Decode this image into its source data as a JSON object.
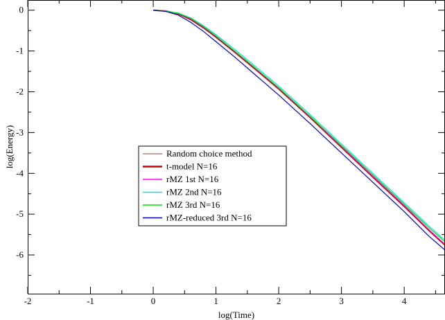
{
  "chart_data": {
    "type": "line",
    "title": "",
    "xlabel": "log(Time)",
    "ylabel": "log(Energy)",
    "xlim": [
      -2,
      4.65
    ],
    "ylim": [
      -6.95,
      0.25
    ],
    "xticks": [
      -2,
      -1,
      0,
      1,
      2,
      3,
      4
    ],
    "yticks": [
      0,
      -1,
      -2,
      -3,
      -4,
      -5,
      -6
    ],
    "grid": false,
    "legend_position": "center-left",
    "series": [
      {
        "name": "Random choice method",
        "color": "#c08080",
        "x": [
          0,
          0.2,
          0.4,
          0.6,
          0.8,
          1.0,
          1.3,
          1.6,
          2.0,
          2.5,
          3.0,
          3.5,
          4.0,
          4.4,
          4.65
        ],
        "y": [
          0.0,
          -0.02,
          -0.08,
          -0.22,
          -0.42,
          -0.65,
          -1.02,
          -1.4,
          -1.92,
          -2.62,
          -3.35,
          -4.08,
          -4.8,
          -5.4,
          -5.75
        ]
      },
      {
        "name": "t-model N=16",
        "color": "#cc0000",
        "x": [
          0,
          0.2,
          0.4,
          0.6,
          0.8,
          1.0,
          1.3,
          1.6,
          2.0,
          2.5,
          3.0,
          3.5,
          4.0,
          4.4,
          4.65
        ],
        "y": [
          0.0,
          -0.02,
          -0.09,
          -0.23,
          -0.43,
          -0.66,
          -1.03,
          -1.41,
          -1.93,
          -2.63,
          -3.36,
          -4.09,
          -4.81,
          -5.41,
          -5.76
        ]
      },
      {
        "name": "rMZ 1st N=16",
        "color": "#ff00ff",
        "x": [
          0,
          0.2,
          0.4,
          0.6,
          0.8,
          1.0,
          1.3,
          1.6,
          2.0,
          2.5,
          3.0,
          3.5,
          4.0,
          4.4,
          4.65
        ],
        "y": [
          0.0,
          -0.02,
          -0.08,
          -0.21,
          -0.41,
          -0.64,
          -1.01,
          -1.39,
          -1.91,
          -2.61,
          -3.34,
          -4.07,
          -4.79,
          -5.39,
          -5.74
        ]
      },
      {
        "name": "rMZ 2nd N=16",
        "color": "#00e5e5",
        "x": [
          0,
          0.2,
          0.4,
          0.6,
          0.8,
          1.0,
          1.3,
          1.6,
          2.0,
          2.5,
          3.0,
          3.5,
          4.0,
          4.4,
          4.65
        ],
        "y": [
          0.0,
          -0.02,
          -0.07,
          -0.19,
          -0.38,
          -0.6,
          -0.96,
          -1.34,
          -1.86,
          -2.56,
          -3.28,
          -4.0,
          -4.72,
          -5.3,
          -5.64
        ]
      },
      {
        "name": "rMZ 3rd N=16",
        "color": "#00e000",
        "x": [
          0,
          0.2,
          0.4,
          0.6,
          0.8,
          1.0,
          1.3,
          1.6,
          2.0,
          2.5,
          3.0,
          3.5,
          4.0,
          4.4,
          4.65
        ],
        "y": [
          0.0,
          -0.02,
          -0.08,
          -0.2,
          -0.4,
          -0.63,
          -1.0,
          -1.38,
          -1.9,
          -2.6,
          -3.32,
          -4.04,
          -4.76,
          -5.34,
          -5.68
        ]
      },
      {
        "name": "rMZ-reduced 3rd N=16",
        "color": "#0000cc",
        "x": [
          0,
          0.2,
          0.4,
          0.6,
          0.8,
          1.0,
          1.3,
          1.6,
          2.0,
          2.5,
          3.0,
          3.5,
          4.0,
          4.4,
          4.65
        ],
        "y": [
          0.0,
          -0.03,
          -0.12,
          -0.3,
          -0.52,
          -0.77,
          -1.15,
          -1.55,
          -2.08,
          -2.78,
          -3.5,
          -4.22,
          -4.94,
          -5.55,
          -5.88
        ]
      }
    ]
  }
}
